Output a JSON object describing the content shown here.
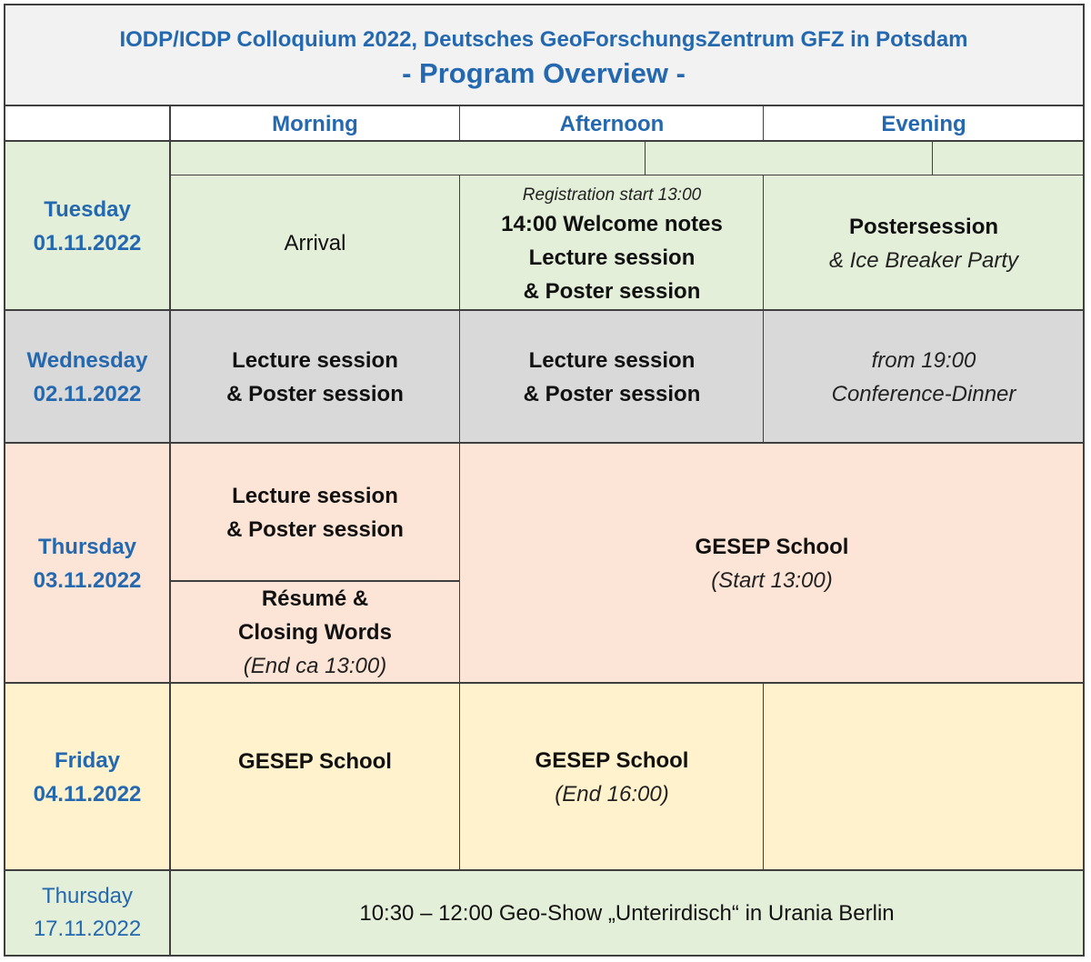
{
  "title": {
    "line1": "IODP/ICDP Colloquium 2022, Deutsches GeoForschungsZentrum GFZ in Potsdam",
    "line2": "- Program Overview -"
  },
  "columns": {
    "morning": "Morning",
    "afternoon": "Afternoon",
    "evening": "Evening"
  },
  "days": {
    "tue": {
      "day": "Tuesday",
      "date": "01.11.2022",
      "morning": "Arrival",
      "afternoon": {
        "note": "Registration start 13:00",
        "line1": "14:00 Welcome notes",
        "line2": "Lecture session",
        "line3": "& Poster session"
      },
      "evening": {
        "line1": "Postersession",
        "line2": "& Ice Breaker Party"
      }
    },
    "wed": {
      "day": "Wednesday",
      "date": "02.11.2022",
      "morning": {
        "line1": "Lecture session",
        "line2": "& Poster session"
      },
      "afternoon": {
        "line1": "Lecture session",
        "line2": "& Poster session"
      },
      "evening": {
        "line1": "from 19:00",
        "line2": "Conference-Dinner"
      }
    },
    "thu": {
      "day": "Thursday",
      "date": "03.11.2022",
      "morning_top": {
        "line1": "Lecture session",
        "line2": "& Poster session"
      },
      "morning_bottom": {
        "line1": "Résumé &",
        "line2": "Closing Words",
        "line3": "(End ca 13:00)"
      },
      "afternoon_evening": {
        "line1": "GESEP School",
        "line2": "(Start 13:00)"
      }
    },
    "fri": {
      "day": "Friday",
      "date": "04.11.2022",
      "morning": "GESEP School",
      "afternoon": {
        "line1": "GESEP School",
        "line2": "(End 16:00)"
      }
    },
    "thu2": {
      "day": "Thursday",
      "date": "17.11.2022",
      "event": "10:30 – 12:00 Geo-Show „Unterirdisch“ in Urania Berlin"
    }
  },
  "colors": {
    "title_bg": "#f2f2f2",
    "tuesday": "#e3efd9",
    "wednesday": "#d9d9d9",
    "thursday": "#fce4d6",
    "friday": "#fff2cc",
    "thursday2": "#e3efd9",
    "accent": "#2468b0"
  }
}
